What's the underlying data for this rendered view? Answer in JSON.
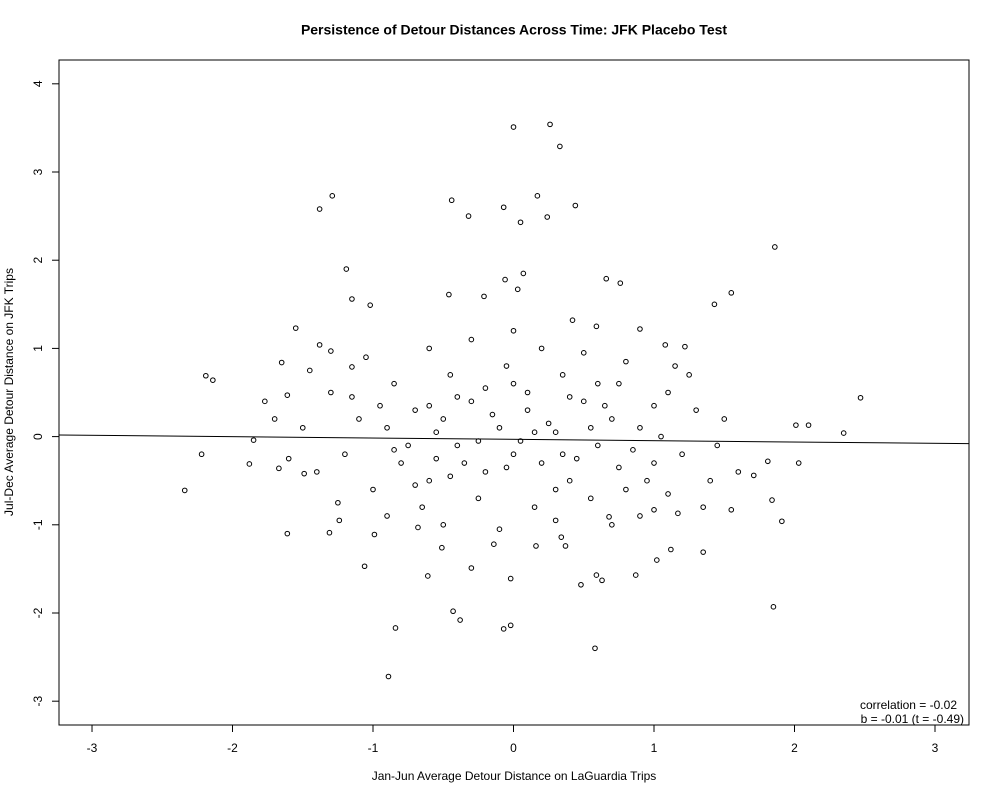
{
  "chart_data": {
    "type": "scatter",
    "title": "Persistence of Detour Distances Across Time: JFK Placebo Test",
    "x_label": "Jan-Jun Average Detour Distance on LaGuardia Trips",
    "y_label": "Jul-Dec Average Detour Distance on JFK Trips",
    "annotations": [
      "correlation = -0.02",
      "b = -0.01 (t = -0.49)"
    ],
    "xlim": [
      -3.235,
      3.242
    ],
    "ylim": [
      -3.27,
      4.27
    ],
    "xticks": [
      -3,
      -2,
      -1,
      0,
      1,
      2,
      3
    ],
    "yticks": [
      -3,
      -2,
      -1,
      0,
      1,
      2,
      3,
      4
    ],
    "color": "#000000",
    "fit_line": {
      "x": [
        -3.235,
        3.242
      ],
      "y": [
        0.018,
        -0.08
      ]
    },
    "points": [
      {
        "x": -2.34,
        "y": -0.61
      },
      {
        "x": -2.19,
        "y": 0.69
      },
      {
        "x": -2.14,
        "y": 0.64
      },
      {
        "x": -2.22,
        "y": -0.2
      },
      {
        "x": -1.88,
        "y": -0.31
      },
      {
        "x": -1.85,
        "y": -0.04
      },
      {
        "x": -1.38,
        "y": 2.58
      },
      {
        "x": -1.29,
        "y": 2.73
      },
      {
        "x": -1.19,
        "y": 1.9
      },
      {
        "x": -1.15,
        "y": 1.56
      },
      {
        "x": -1.02,
        "y": 1.49
      },
      {
        "x": -0.89,
        "y": -2.72
      },
      {
        "x": -0.84,
        "y": -2.17
      },
      {
        "x": -0.43,
        "y": -1.98
      },
      {
        "x": -0.38,
        "y": -2.08
      },
      {
        "x": -0.44,
        "y": 2.68
      },
      {
        "x": -0.32,
        "y": 2.5
      },
      {
        "x": -0.07,
        "y": -2.18
      },
      {
        "x": -0.02,
        "y": -2.14
      },
      {
        "x": 0.0,
        "y": 3.51
      },
      {
        "x": -0.07,
        "y": 2.6
      },
      {
        "x": 0.05,
        "y": 2.43
      },
      {
        "x": 0.26,
        "y": 3.54
      },
      {
        "x": 0.33,
        "y": 3.29
      },
      {
        "x": 0.17,
        "y": 2.73
      },
      {
        "x": 0.24,
        "y": 2.49
      },
      {
        "x": 0.44,
        "y": 2.62
      },
      {
        "x": 0.58,
        "y": -2.4
      },
      {
        "x": 0.48,
        "y": -1.68
      },
      {
        "x": 0.59,
        "y": -1.57
      },
      {
        "x": 0.63,
        "y": -1.63
      },
      {
        "x": 0.87,
        "y": -1.57
      },
      {
        "x": 1.86,
        "y": 2.15
      },
      {
        "x": 1.85,
        "y": -1.93
      },
      {
        "x": 1.55,
        "y": 1.63
      },
      {
        "x": 1.43,
        "y": 1.5
      },
      {
        "x": 2.47,
        "y": 0.44
      },
      {
        "x": 2.35,
        "y": 0.04
      },
      {
        "x": 2.1,
        "y": 0.13
      },
      {
        "x": 2.01,
        "y": 0.13
      },
      {
        "x": 2.03,
        "y": -0.3
      },
      {
        "x": 1.91,
        "y": -0.96
      },
      {
        "x": 1.84,
        "y": -0.72
      },
      {
        "x": 1.81,
        "y": -0.28
      },
      {
        "x": 1.71,
        "y": -0.44
      },
      {
        "x": 1.55,
        "y": -0.83
      },
      {
        "x": 1.35,
        "y": -1.31
      },
      {
        "x": 1.12,
        "y": -1.28
      },
      {
        "x": 1.02,
        "y": -1.4
      },
      {
        "x": -1.61,
        "y": -1.1
      },
      {
        "x": -1.49,
        "y": -0.42
      },
      {
        "x": -1.65,
        "y": 0.84
      },
      {
        "x": -1.55,
        "y": 1.23
      },
      {
        "x": -1.38,
        "y": 1.04
      },
      {
        "x": -1.06,
        "y": -1.47
      },
      {
        "x": -0.99,
        "y": -1.11
      },
      {
        "x": -0.61,
        "y": -1.58
      },
      {
        "x": -0.51,
        "y": -1.26
      },
      {
        "x": -0.3,
        "y": -1.49
      },
      {
        "x": -0.02,
        "y": -1.61
      },
      {
        "x": -0.21,
        "y": 1.59
      },
      {
        "x": -0.46,
        "y": 1.61
      },
      {
        "x": -0.06,
        "y": 1.78
      },
      {
        "x": 0.07,
        "y": 1.85
      },
      {
        "x": 0.03,
        "y": 1.67
      },
      {
        "x": 0.66,
        "y": 1.79
      },
      {
        "x": 0.76,
        "y": 1.74
      },
      {
        "x": 0.42,
        "y": 1.32
      },
      {
        "x": 0.59,
        "y": 1.25
      },
      {
        "x": 0.9,
        "y": 1.22
      },
      {
        "x": 1.08,
        "y": 1.04
      },
      {
        "x": 1.22,
        "y": 1.02
      },
      {
        "x": 1.17,
        "y": -0.87
      },
      {
        "x": 1.0,
        "y": -0.83
      },
      {
        "x": 0.68,
        "y": -0.91
      },
      {
        "x": 0.34,
        "y": -1.14
      },
      {
        "x": 0.37,
        "y": -1.24
      },
      {
        "x": 0.16,
        "y": -1.24
      },
      {
        "x": -0.14,
        "y": -1.22
      },
      {
        "x": -0.68,
        "y": -1.03
      },
      {
        "x": -1.24,
        "y": -0.95
      },
      {
        "x": -1.31,
        "y": -1.09
      },
      {
        "x": -1.3,
        "y": 0.97
      },
      {
        "x": -1.15,
        "y": 0.79
      },
      {
        "x": -1.77,
        "y": 0.4
      },
      {
        "x": -1.67,
        "y": -0.36
      },
      {
        "x": -1.61,
        "y": 0.47
      },
      {
        "x": -0.9,
        "y": 0.1
      },
      {
        "x": -0.8,
        "y": -0.3
      },
      {
        "x": -0.7,
        "y": 0.3
      },
      {
        "x": -0.6,
        "y": -0.5
      },
      {
        "x": -0.5,
        "y": 0.2
      },
      {
        "x": -0.4,
        "y": -0.1
      },
      {
        "x": -0.3,
        "y": 0.4
      },
      {
        "x": -0.2,
        "y": -0.4
      },
      {
        "x": -0.1,
        "y": 0.1
      },
      {
        "x": 0.0,
        "y": -0.2
      },
      {
        "x": 0.1,
        "y": 0.3
      },
      {
        "x": 0.2,
        "y": -0.3
      },
      {
        "x": 0.3,
        "y": 0.05
      },
      {
        "x": 0.4,
        "y": -0.5
      },
      {
        "x": 0.5,
        "y": 0.4
      },
      {
        "x": 0.6,
        "y": -0.1
      },
      {
        "x": 0.7,
        "y": 0.2
      },
      {
        "x": 0.8,
        "y": -0.6
      },
      {
        "x": 0.9,
        "y": 0.1
      },
      {
        "x": 1.0,
        "y": -0.3
      },
      {
        "x": 1.1,
        "y": 0.5
      },
      {
        "x": 1.2,
        "y": -0.2
      },
      {
        "x": 1.3,
        "y": 0.3
      },
      {
        "x": 1.4,
        "y": -0.5
      },
      {
        "x": -1.0,
        "y": -0.6
      },
      {
        "x": -1.1,
        "y": 0.2
      },
      {
        "x": -1.2,
        "y": -0.2
      },
      {
        "x": -1.3,
        "y": 0.5
      },
      {
        "x": -1.4,
        "y": -0.4
      },
      {
        "x": -1.5,
        "y": 0.1
      },
      {
        "x": -0.85,
        "y": 0.6
      },
      {
        "x": -0.65,
        "y": -0.8
      },
      {
        "x": -0.45,
        "y": 0.7
      },
      {
        "x": -0.25,
        "y": -0.7
      },
      {
        "x": -0.05,
        "y": 0.8
      },
      {
        "x": 0.15,
        "y": -0.8
      },
      {
        "x": 0.35,
        "y": 0.7
      },
      {
        "x": 0.55,
        "y": -0.7
      },
      {
        "x": 0.75,
        "y": 0.6
      },
      {
        "x": 0.95,
        "y": -0.5
      },
      {
        "x": -0.75,
        "y": -0.1
      },
      {
        "x": -0.55,
        "y": 0.05
      },
      {
        "x": -0.35,
        "y": -0.3
      },
      {
        "x": -0.15,
        "y": 0.25
      },
      {
        "x": 0.05,
        "y": -0.05
      },
      {
        "x": 0.25,
        "y": 0.15
      },
      {
        "x": 0.45,
        "y": -0.25
      },
      {
        "x": 0.65,
        "y": 0.35
      },
      {
        "x": 0.85,
        "y": -0.15
      },
      {
        "x": 1.05,
        "y": 0.0
      },
      {
        "x": -0.95,
        "y": 0.35
      },
      {
        "x": -0.7,
        "y": -0.55
      },
      {
        "x": -0.45,
        "y": -0.45
      },
      {
        "x": -0.2,
        "y": 0.55
      },
      {
        "x": 0.1,
        "y": 0.5
      },
      {
        "x": 0.3,
        "y": -0.6
      },
      {
        "x": 0.6,
        "y": 0.6
      },
      {
        "x": 0.9,
        "y": -0.9
      },
      {
        "x": 1.15,
        "y": 0.8
      },
      {
        "x": 1.35,
        "y": -0.8
      },
      {
        "x": -1.6,
        "y": -0.25
      },
      {
        "x": -1.7,
        "y": 0.2
      },
      {
        "x": -1.45,
        "y": 0.75
      },
      {
        "x": -1.25,
        "y": -0.75
      },
      {
        "x": -1.05,
        "y": 0.9
      },
      {
        "x": -0.6,
        "y": 1.0
      },
      {
        "x": -0.3,
        "y": 1.1
      },
      {
        "x": 0.0,
        "y": 1.2
      },
      {
        "x": 0.2,
        "y": 1.0
      },
      {
        "x": 0.5,
        "y": 0.95
      },
      {
        "x": 0.8,
        "y": 0.85
      },
      {
        "x": 1.25,
        "y": 0.7
      },
      {
        "x": 1.5,
        "y": 0.2
      },
      {
        "x": 1.6,
        "y": -0.4
      },
      {
        "x": 1.45,
        "y": -0.1
      },
      {
        "x": -0.9,
        "y": -0.9
      },
      {
        "x": -0.5,
        "y": -1.0
      },
      {
        "x": -0.1,
        "y": -1.05
      },
      {
        "x": 0.3,
        "y": -0.95
      },
      {
        "x": 0.7,
        "y": -1.0
      },
      {
        "x": 1.1,
        "y": -0.65
      },
      {
        "x": -0.4,
        "y": 0.45
      },
      {
        "x": 0.4,
        "y": 0.45
      },
      {
        "x": 0.0,
        "y": 0.6
      },
      {
        "x": -0.6,
        "y": 0.35
      },
      {
        "x": 0.15,
        "y": 0.05
      },
      {
        "x": -0.25,
        "y": -0.05
      },
      {
        "x": 0.55,
        "y": 0.1
      },
      {
        "x": -0.05,
        "y": -0.35
      },
      {
        "x": 0.35,
        "y": -0.2
      },
      {
        "x": -0.55,
        "y": -0.25
      },
      {
        "x": 0.75,
        "y": -0.35
      },
      {
        "x": -0.85,
        "y": -0.15
      },
      {
        "x": 1.0,
        "y": 0.35
      },
      {
        "x": -1.15,
        "y": 0.45
      }
    ]
  }
}
